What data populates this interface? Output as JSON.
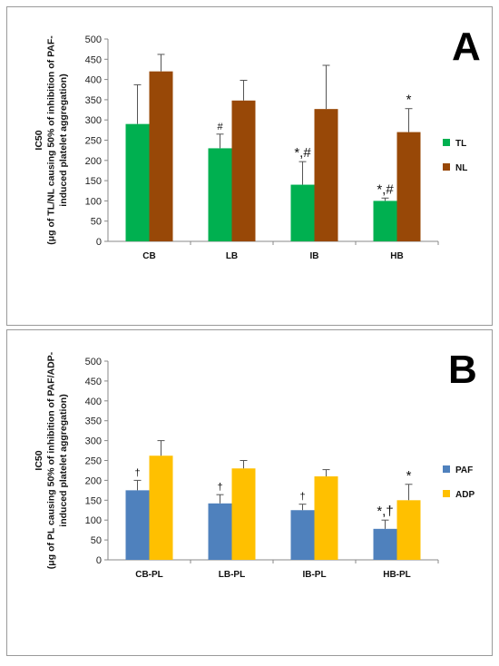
{
  "chart_data": [
    {
      "panel": "A",
      "type": "bar",
      "ylabel_lines": [
        "IC50",
        "(μg of TL/NL causing 50% of inhibition of PAF-",
        "induced platelet aggregation)"
      ],
      "categories": [
        "CB",
        "LB",
        "IB",
        "HB"
      ],
      "ylim": [
        0,
        500
      ],
      "yticks": [
        0,
        50,
        100,
        150,
        200,
        250,
        300,
        350,
        400,
        450,
        500
      ],
      "series": [
        {
          "name": "TL",
          "color": "#00b050",
          "values": [
            290,
            230,
            140,
            100
          ],
          "errors": [
            97,
            35,
            57,
            7
          ],
          "annotations": [
            "",
            "#",
            "*,#",
            "*,#"
          ]
        },
        {
          "name": "NL",
          "color": "#984807",
          "values": [
            420,
            348,
            327,
            270
          ],
          "errors": [
            42,
            50,
            108,
            58
          ],
          "annotations": [
            "",
            "",
            "",
            "*"
          ]
        }
      ],
      "legend_position": "right"
    },
    {
      "panel": "B",
      "type": "bar",
      "ylabel_lines": [
        "IC50",
        "(μg of PL causing 50% of inhibition of PAF/ADP-",
        "induced platelet aggregation)"
      ],
      "categories": [
        "CB-PL",
        "LB-PL",
        "IB-PL",
        "HB-PL"
      ],
      "ylim": [
        0,
        500
      ],
      "yticks": [
        0,
        50,
        100,
        150,
        200,
        250,
        300,
        350,
        400,
        450,
        500
      ],
      "series": [
        {
          "name": "PAF",
          "color": "#4f81bd",
          "values": [
            175,
            142,
            125,
            78
          ],
          "errors": [
            25,
            22,
            15,
            22
          ],
          "annotations": [
            "†",
            "†",
            "†",
            "*,†"
          ]
        },
        {
          "name": "ADP",
          "color": "#ffc000",
          "values": [
            262,
            230,
            210,
            150
          ],
          "errors": [
            38,
            20,
            17,
            40
          ],
          "annotations": [
            "",
            "",
            "",
            "*"
          ]
        }
      ],
      "legend_position": "right"
    }
  ]
}
